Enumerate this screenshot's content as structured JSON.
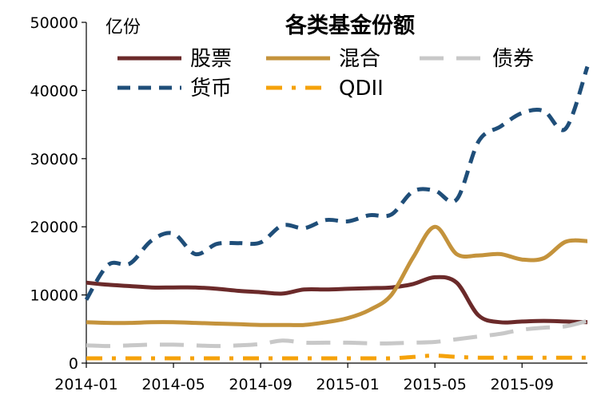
{
  "chart_data": {
    "type": "line",
    "title": "各类基金份额",
    "ylabel": "亿份",
    "xlabel": "",
    "ylim": [
      0,
      50000
    ],
    "yticks": [
      0,
      10000,
      20000,
      30000,
      40000,
      50000
    ],
    "xlim": [
      "2014-01",
      "2015-12"
    ],
    "xticks": [
      "2014-01",
      "2014-05",
      "2014-09",
      "2015-01",
      "2015-05",
      "2015-09"
    ],
    "grid": false,
    "legend_position": "top",
    "series": [
      {
        "name": "股票",
        "color": "#6b2a2a",
        "dash": "solid",
        "points": [
          [
            "2014-01",
            11800
          ],
          [
            "2014-02",
            11500
          ],
          [
            "2014-03",
            11300
          ],
          [
            "2014-04",
            11100
          ],
          [
            "2014-05",
            11100
          ],
          [
            "2014-06",
            11100
          ],
          [
            "2014-07",
            10900
          ],
          [
            "2014-08",
            10600
          ],
          [
            "2014-09",
            10400
          ],
          [
            "2014-10",
            10200
          ],
          [
            "2014-11",
            10800
          ],
          [
            "2014-12",
            10800
          ],
          [
            "2015-01",
            10900
          ],
          [
            "2015-02",
            11000
          ],
          [
            "2015-03",
            11100
          ],
          [
            "2015-04",
            11600
          ],
          [
            "2015-05",
            12600
          ],
          [
            "2015-06",
            11800
          ],
          [
            "2015-07",
            7000
          ],
          [
            "2015-08",
            6000
          ],
          [
            "2015-09",
            6100
          ],
          [
            "2015-10",
            6200
          ],
          [
            "2015-11",
            6100
          ],
          [
            "2015-12",
            6000
          ]
        ]
      },
      {
        "name": "混合",
        "color": "#c4933c",
        "dash": "solid",
        "points": [
          [
            "2014-01",
            6000
          ],
          [
            "2014-02",
            5900
          ],
          [
            "2014-03",
            5900
          ],
          [
            "2014-04",
            6000
          ],
          [
            "2014-05",
            6000
          ],
          [
            "2014-06",
            5900
          ],
          [
            "2014-07",
            5800
          ],
          [
            "2014-08",
            5700
          ],
          [
            "2014-09",
            5600
          ],
          [
            "2014-10",
            5600
          ],
          [
            "2014-11",
            5600
          ],
          [
            "2014-12",
            6000
          ],
          [
            "2015-01",
            6600
          ],
          [
            "2015-02",
            7800
          ],
          [
            "2015-03",
            10000
          ],
          [
            "2015-04",
            15500
          ],
          [
            "2015-05",
            20000
          ],
          [
            "2015-06",
            16000
          ],
          [
            "2015-07",
            15800
          ],
          [
            "2015-08",
            16000
          ],
          [
            "2015-09",
            15200
          ],
          [
            "2015-10",
            15400
          ],
          [
            "2015-11",
            17800
          ],
          [
            "2015-12",
            17900
          ]
        ]
      },
      {
        "name": "债券",
        "color": "#c8c8c8",
        "dash": "long",
        "points": [
          [
            "2014-01",
            2600
          ],
          [
            "2014-02",
            2500
          ],
          [
            "2014-03",
            2600
          ],
          [
            "2014-04",
            2700
          ],
          [
            "2014-05",
            2700
          ],
          [
            "2014-06",
            2600
          ],
          [
            "2014-07",
            2500
          ],
          [
            "2014-08",
            2600
          ],
          [
            "2014-09",
            2800
          ],
          [
            "2014-10",
            3300
          ],
          [
            "2014-11",
            3000
          ],
          [
            "2014-12",
            3000
          ],
          [
            "2015-01",
            3000
          ],
          [
            "2015-02",
            2900
          ],
          [
            "2015-03",
            2900
          ],
          [
            "2015-04",
            3000
          ],
          [
            "2015-05",
            3100
          ],
          [
            "2015-06",
            3500
          ],
          [
            "2015-07",
            3900
          ],
          [
            "2015-08",
            4300
          ],
          [
            "2015-09",
            4900
          ],
          [
            "2015-10",
            5200
          ],
          [
            "2015-11",
            5400
          ],
          [
            "2015-12",
            6200
          ]
        ]
      },
      {
        "name": "货币",
        "color": "#1f4e79",
        "dash": "medium",
        "points": [
          [
            "2014-01",
            9300
          ],
          [
            "2014-02",
            14400
          ],
          [
            "2014-03",
            14600
          ],
          [
            "2014-04",
            18000
          ],
          [
            "2014-05",
            19000
          ],
          [
            "2014-06",
            16000
          ],
          [
            "2014-07",
            17500
          ],
          [
            "2014-08",
            17600
          ],
          [
            "2014-09",
            17700
          ],
          [
            "2014-10",
            20200
          ],
          [
            "2014-11",
            19800
          ],
          [
            "2014-12",
            21000
          ],
          [
            "2015-01",
            20800
          ],
          [
            "2015-02",
            21700
          ],
          [
            "2015-03",
            21800
          ],
          [
            "2015-04",
            25200
          ],
          [
            "2015-05",
            25300
          ],
          [
            "2015-06",
            24000
          ],
          [
            "2015-07",
            32500
          ],
          [
            "2015-08",
            34700
          ],
          [
            "2015-09",
            36700
          ],
          [
            "2015-10",
            37000
          ],
          [
            "2015-11",
            34400
          ],
          [
            "2015-12",
            43500
          ]
        ]
      },
      {
        "name": "QDII",
        "color": "#f5a20a",
        "dash": "dashdot",
        "points": [
          [
            "2014-01",
            700
          ],
          [
            "2014-02",
            700
          ],
          [
            "2014-03",
            700
          ],
          [
            "2014-04",
            700
          ],
          [
            "2014-05",
            700
          ],
          [
            "2014-06",
            700
          ],
          [
            "2014-07",
            700
          ],
          [
            "2014-08",
            700
          ],
          [
            "2014-09",
            700
          ],
          [
            "2014-10",
            700
          ],
          [
            "2014-11",
            700
          ],
          [
            "2014-12",
            700
          ],
          [
            "2015-01",
            700
          ],
          [
            "2015-02",
            700
          ],
          [
            "2015-03",
            700
          ],
          [
            "2015-04",
            900
          ],
          [
            "2015-05",
            1100
          ],
          [
            "2015-06",
            900
          ],
          [
            "2015-07",
            800
          ],
          [
            "2015-08",
            800
          ],
          [
            "2015-09",
            800
          ],
          [
            "2015-10",
            800
          ],
          [
            "2015-11",
            800
          ],
          [
            "2015-12",
            800
          ]
        ]
      }
    ],
    "legend_rows": [
      [
        "股票",
        "混合",
        "债券"
      ],
      [
        "货币",
        "QDII"
      ]
    ]
  }
}
